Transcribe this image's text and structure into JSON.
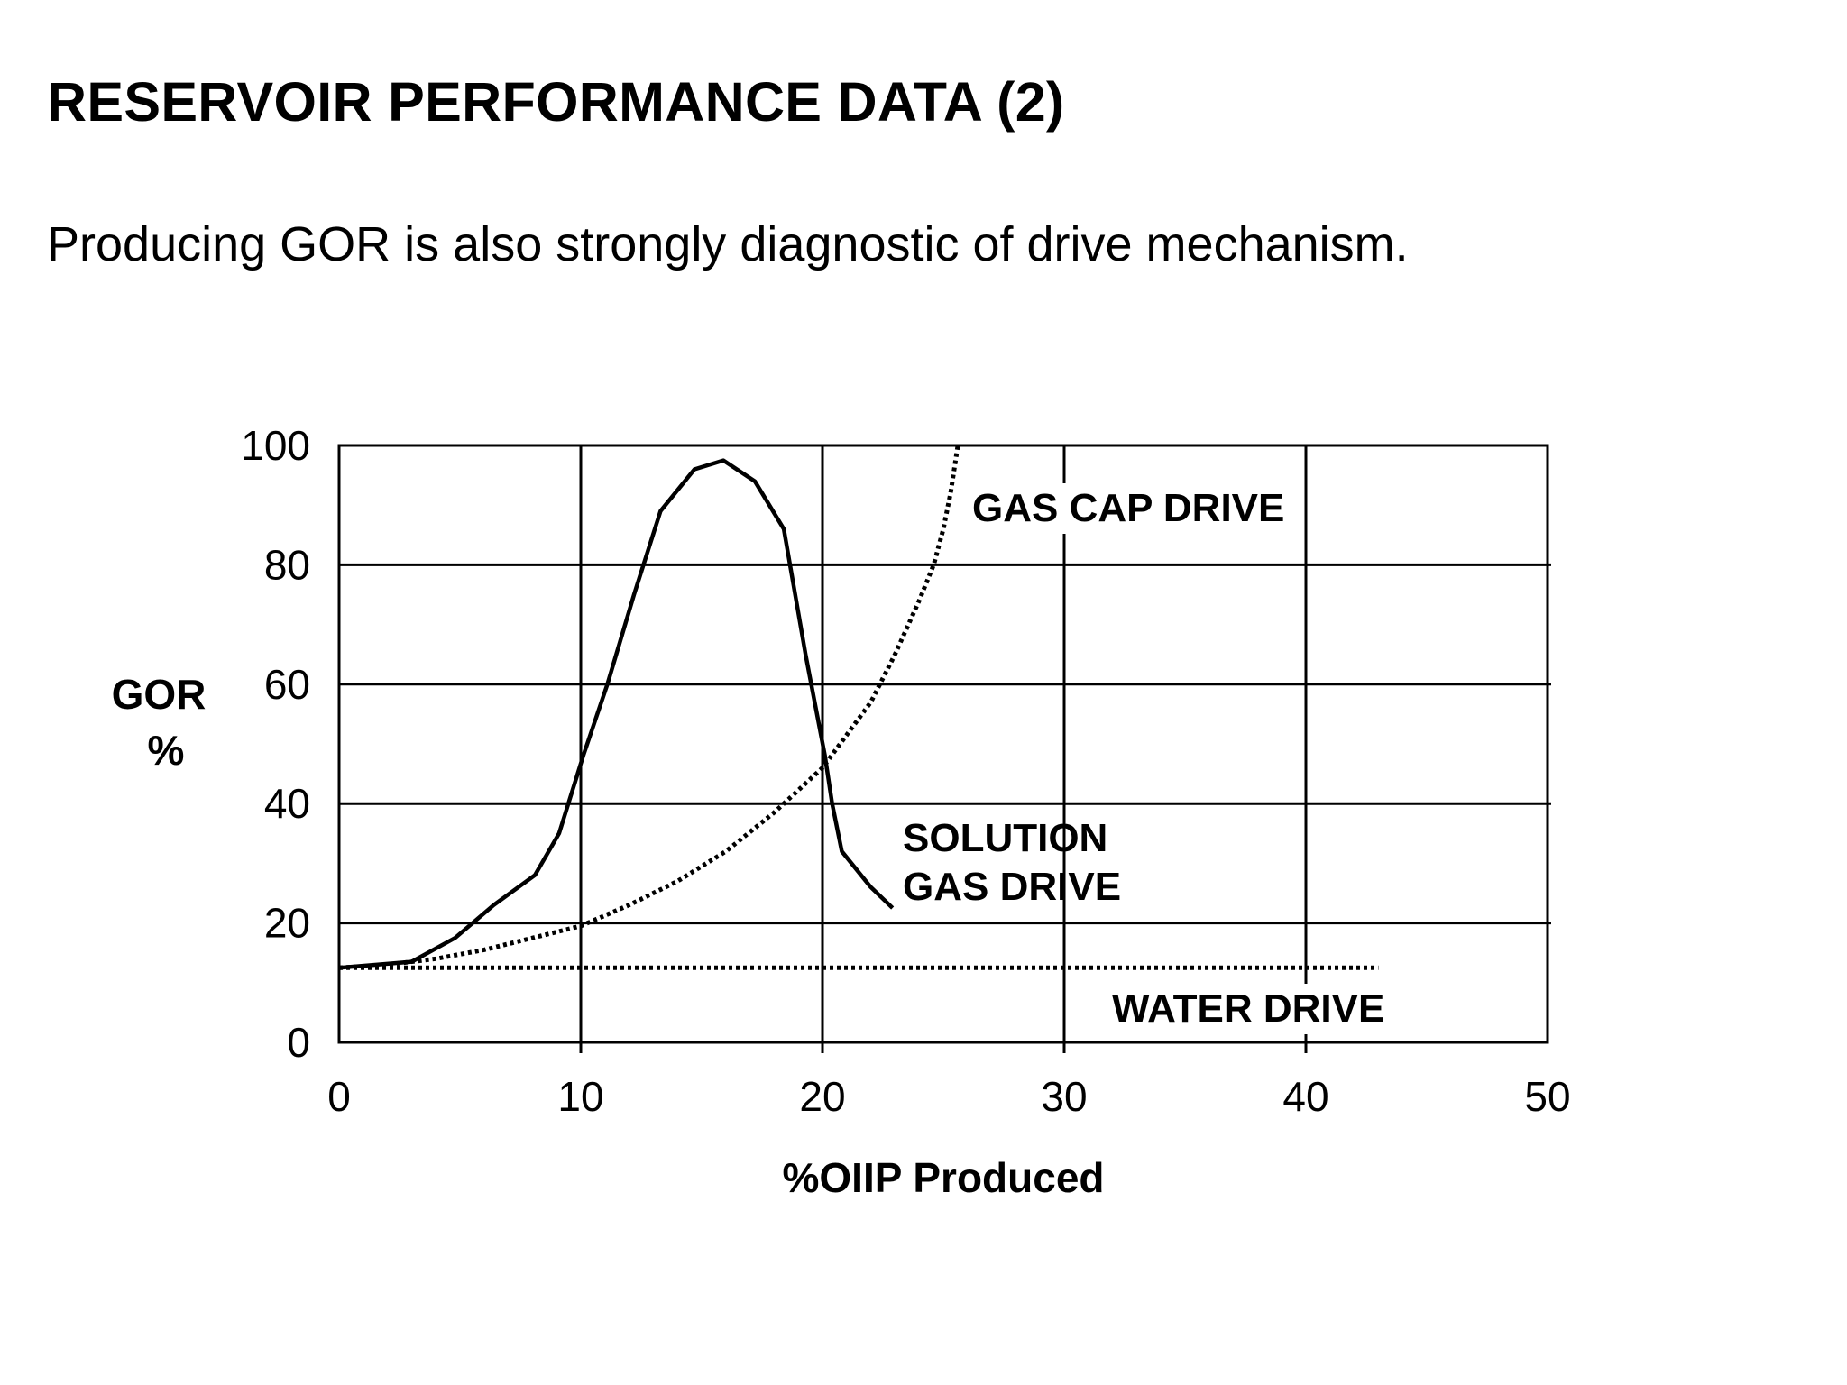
{
  "slide": {
    "title": "RESERVOIR PERFORMANCE DATA (2)",
    "subtitle": "Producing GOR is also strongly diagnostic of drive mechanism."
  },
  "chart_data": {
    "type": "line",
    "title": "",
    "xlabel": "%OIIP Produced",
    "ylabel_lines": [
      "GOR",
      "%"
    ],
    "xlim": [
      0,
      50
    ],
    "ylim": [
      0,
      100
    ],
    "x_ticks": [
      0,
      10,
      20,
      30,
      40,
      50
    ],
    "y_ticks": [
      0,
      20,
      40,
      60,
      80,
      100
    ],
    "grid": true,
    "series": [
      {
        "name": "SOLUTION GAS DRIVE",
        "label_lines": [
          "SOLUTION",
          "GAS DRIVE"
        ],
        "style": "solid",
        "color": "#000000",
        "x": [
          0,
          3,
          4.8,
          6.4,
          8.1,
          9.1,
          10.1,
          11.1,
          12.2,
          13.3,
          14.7,
          15.9,
          17.2,
          18.4,
          19.3,
          20.1,
          20.4,
          20.8,
          22,
          22.9
        ],
        "y": [
          12.5,
          13.5,
          17.5,
          23,
          28,
          35,
          48,
          60,
          75,
          89,
          96,
          97.5,
          94,
          86,
          65,
          48,
          40,
          32,
          26,
          22.5
        ]
      },
      {
        "name": "GAS CAP DRIVE",
        "label_lines": [
          "GAS CAP DRIVE"
        ],
        "style": "dotted",
        "color": "#000000",
        "x": [
          0,
          2,
          4,
          6,
          8,
          10,
          12,
          14,
          16,
          18,
          20,
          22,
          23,
          24,
          24.6,
          25,
          25.3,
          25.6
        ],
        "y": [
          12.5,
          13,
          14,
          15.5,
          17.5,
          19.5,
          23,
          27,
          32,
          38.5,
          46,
          57,
          65,
          74,
          80,
          86,
          92,
          100
        ]
      },
      {
        "name": "WATER DRIVE",
        "label_lines": [
          "WATER DRIVE"
        ],
        "style": "dotted",
        "color": "#000000",
        "x": [
          0,
          10,
          20,
          30,
          43
        ],
        "y": [
          12.5,
          12.5,
          12.5,
          12.5,
          12.5
        ]
      }
    ]
  }
}
